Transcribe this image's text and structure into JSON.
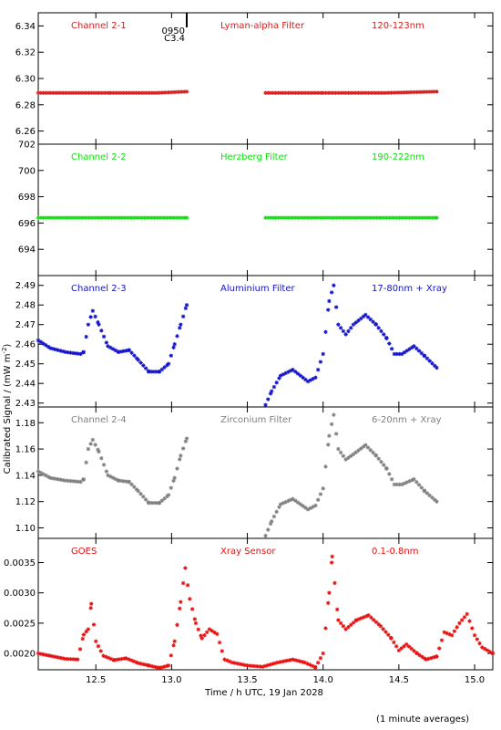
{
  "figure": {
    "ylabel": "Calibrated Signal / (mW m",
    "ylabel_sup": "-2",
    "ylabel_end": ")",
    "xlabel": "Time / h UTC, 19 Jan 2028",
    "footnote": "(1 minute averages)",
    "xlim": [
      12.12,
      15.12
    ],
    "xticks": [
      12.5,
      13.0,
      13.5,
      14.0,
      14.5,
      15.0
    ],
    "xtick_labels": [
      "12.5",
      "13.0",
      "13.5",
      "14.0",
      "14.5",
      "15.0"
    ],
    "marker_time": 13.1,
    "marker_labels": [
      "0950",
      "C3.4"
    ]
  },
  "chart_data": [
    {
      "type": "scatter",
      "panel": "channel-2-1",
      "color": "#d42020",
      "labels": [
        "Channel 2-1",
        "Lyman-alpha Filter",
        "120-123nm"
      ],
      "ylim": [
        6.25,
        6.35
      ],
      "yticks": [
        6.26,
        6.28,
        6.3,
        6.32,
        6.34
      ],
      "ytick_labels": [
        "6.26",
        "6.28",
        "6.30",
        "6.32",
        "6.34"
      ],
      "segments": [
        {
          "x": [
            12.12,
            12.6,
            12.9,
            13.1
          ],
          "y": [
            6.289,
            6.289,
            6.289,
            6.29
          ]
        },
        {
          "x": [
            13.62,
            14.0,
            14.4,
            14.75
          ],
          "y": [
            6.289,
            6.289,
            6.289,
            6.29
          ]
        }
      ]
    },
    {
      "type": "scatter",
      "panel": "channel-2-2",
      "color": "#10e010",
      "labels": [
        "Channel 2-2",
        "Herzberg Filter",
        "190-222nm"
      ],
      "ylim": [
        692,
        702
      ],
      "yticks": [
        694,
        696,
        698,
        700,
        702
      ],
      "ytick_labels": [
        "694",
        "696",
        "698",
        "700",
        "702"
      ],
      "segments": [
        {
          "x": [
            12.12,
            13.1
          ],
          "y": [
            696.4,
            696.4
          ]
        },
        {
          "x": [
            13.62,
            14.75
          ],
          "y": [
            696.4,
            696.4
          ]
        }
      ]
    },
    {
      "type": "scatter",
      "panel": "channel-2-3",
      "color": "#1414c8",
      "labels": [
        "Channel 2-3",
        "Aluminium Filter",
        "17-80nm + Xray"
      ],
      "ylim": [
        2.428,
        2.495
      ],
      "yticks": [
        2.43,
        2.44,
        2.45,
        2.46,
        2.47,
        2.48,
        2.49
      ],
      "ytick_labels": [
        "2.43",
        "2.44",
        "2.45",
        "2.46",
        "2.47",
        "2.48",
        "2.49"
      ],
      "segments": [
        {
          "x": [
            12.12,
            12.2,
            12.3,
            12.4,
            12.42,
            12.45,
            12.48,
            12.52,
            12.58,
            12.65,
            12.72,
            12.78,
            12.85,
            12.92,
            12.98,
            13.02,
            13.06,
            13.1
          ],
          "y": [
            2.462,
            2.458,
            2.456,
            2.455,
            2.456,
            2.47,
            2.477,
            2.47,
            2.459,
            2.456,
            2.457,
            2.452,
            2.446,
            2.446,
            2.45,
            2.46,
            2.47,
            2.48
          ]
        },
        {
          "x": [
            13.62,
            13.66,
            13.72,
            13.8,
            13.9,
            13.95,
            14.0,
            14.04,
            14.07,
            14.1,
            14.15,
            14.2,
            14.28,
            14.35,
            14.42,
            14.47,
            14.52,
            14.6,
            14.67,
            14.75
          ],
          "y": [
            2.429,
            2.436,
            2.444,
            2.447,
            2.441,
            2.443,
            2.455,
            2.482,
            2.49,
            2.47,
            2.465,
            2.47,
            2.475,
            2.47,
            2.463,
            2.455,
            2.455,
            2.459,
            2.454,
            2.448
          ]
        }
      ]
    },
    {
      "type": "scatter",
      "panel": "channel-2-4",
      "color": "#808080",
      "labels": [
        "Channel 2-4",
        "Zirconium Filter",
        "6-20nm + Xray"
      ],
      "ylim": [
        1.092,
        1.192
      ],
      "yticks": [
        1.1,
        1.12,
        1.14,
        1.16,
        1.18
      ],
      "ytick_labels": [
        "1.10",
        "1.12",
        "1.14",
        "1.16",
        "1.18"
      ],
      "segments": [
        {
          "x": [
            12.12,
            12.2,
            12.3,
            12.4,
            12.42,
            12.45,
            12.48,
            12.52,
            12.58,
            12.65,
            12.72,
            12.78,
            12.85,
            12.92,
            12.98,
            13.02,
            13.06,
            13.1
          ],
          "y": [
            1.143,
            1.138,
            1.136,
            1.135,
            1.137,
            1.16,
            1.167,
            1.158,
            1.14,
            1.136,
            1.135,
            1.128,
            1.119,
            1.119,
            1.125,
            1.138,
            1.155,
            1.168
          ]
        },
        {
          "x": [
            13.62,
            13.66,
            13.72,
            13.8,
            13.9,
            13.95,
            14.0,
            14.04,
            14.07,
            14.1,
            14.15,
            14.2,
            14.28,
            14.35,
            14.42,
            14.47,
            14.52,
            14.6,
            14.67,
            14.75
          ],
          "y": [
            1.094,
            1.105,
            1.118,
            1.122,
            1.114,
            1.117,
            1.13,
            1.17,
            1.186,
            1.16,
            1.152,
            1.156,
            1.163,
            1.155,
            1.145,
            1.133,
            1.133,
            1.137,
            1.128,
            1.12
          ]
        }
      ]
    },
    {
      "type": "scatter",
      "panel": "goes",
      "color": "#e81010",
      "labels": [
        "GOES",
        "Xray Sensor",
        "0.1-0.8nm"
      ],
      "ylim": [
        0.00173,
        0.0039
      ],
      "yticks": [
        0.002,
        0.0025,
        0.003,
        0.0035
      ],
      "ytick_labels": [
        "0.0020",
        "0.0025",
        "0.0030",
        "0.0035"
      ],
      "segments": [
        {
          "x": [
            12.12,
            12.2,
            12.3,
            12.38,
            12.42,
            12.45,
            12.47,
            12.5,
            12.55,
            12.62,
            12.7,
            12.78,
            12.85,
            12.92,
            12.98,
            13.02,
            13.06,
            13.09,
            13.12,
            13.16,
            13.2,
            13.25,
            13.3,
            13.35,
            13.4,
            13.5,
            13.6,
            13.7,
            13.8,
            13.88,
            13.95,
            14.0,
            14.04,
            14.06,
            14.1,
            14.15,
            14.22,
            14.3,
            14.38,
            14.45,
            14.5,
            14.55,
            14.62,
            14.68,
            14.75,
            14.8,
            14.85,
            14.9,
            14.95,
            15.0,
            15.05,
            15.12
          ],
          "y": [
            0.002,
            0.00196,
            0.00191,
            0.0019,
            0.00231,
            0.0024,
            0.00282,
            0.0022,
            0.00196,
            0.00189,
            0.00192,
            0.00184,
            0.0018,
            0.00176,
            0.0018,
            0.0022,
            0.00285,
            0.00341,
            0.0029,
            0.0025,
            0.00225,
            0.0024,
            0.00232,
            0.0019,
            0.00185,
            0.0018,
            0.00178,
            0.00185,
            0.0019,
            0.00185,
            0.00177,
            0.002,
            0.003,
            0.0036,
            0.00255,
            0.0024,
            0.00255,
            0.00263,
            0.00245,
            0.00225,
            0.00205,
            0.00215,
            0.002,
            0.0019,
            0.00195,
            0.00235,
            0.0023,
            0.0025,
            0.00265,
            0.0023,
            0.0021,
            0.002
          ]
        }
      ]
    }
  ]
}
